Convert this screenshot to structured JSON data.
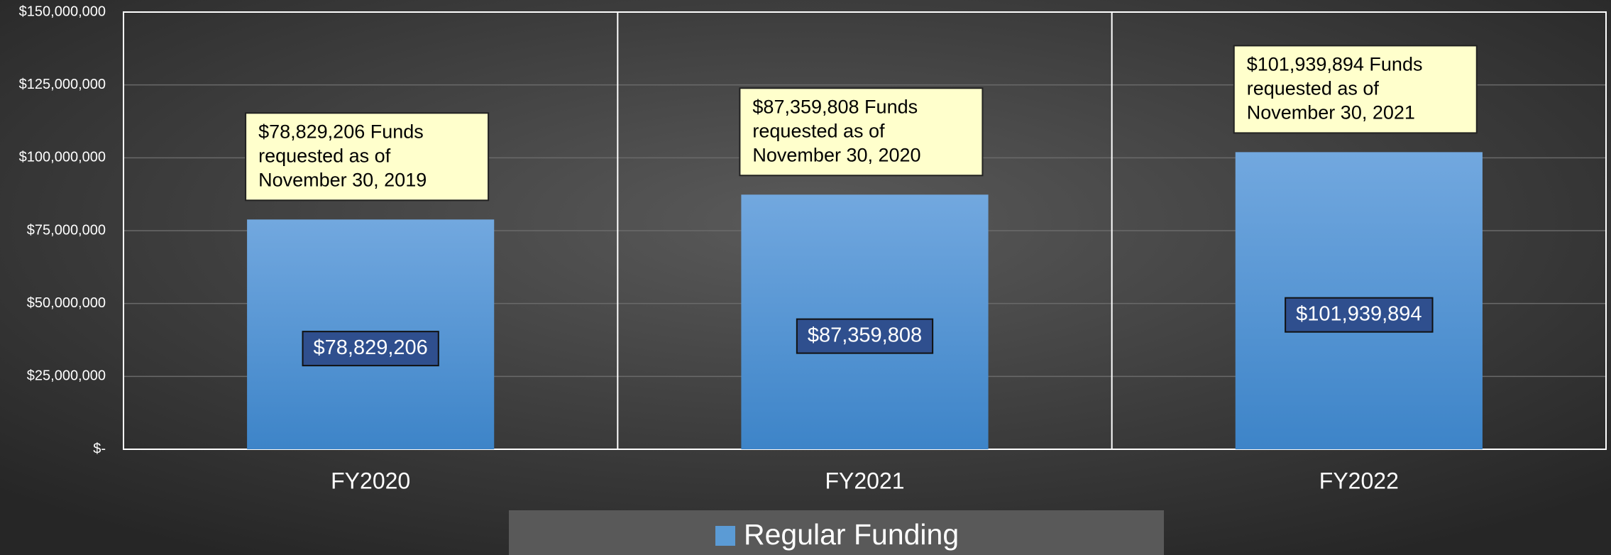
{
  "chart_data": {
    "type": "bar",
    "categories": [
      "FY2020",
      "FY2021",
      "FY2022"
    ],
    "series": [
      {
        "name": "Regular Funding",
        "color": "#5b9bd5",
        "values": [
          78829206,
          87359808,
          101939894
        ],
        "value_labels": [
          "$78,829,206",
          "$87,359,808",
          "$101,939,894"
        ]
      }
    ],
    "annotations": [
      [
        "$78,829,206 Funds",
        "requested as of",
        "November 30, 2019"
      ],
      [
        "$87,359,808 Funds",
        "requested as of",
        "November 30, 2020"
      ],
      [
        "$101,939,894 Funds",
        "requested as of",
        "November 30, 2021"
      ]
    ],
    "ylim": [
      0,
      150000000
    ],
    "yticks": [
      {
        "value": 0,
        "label": "$-"
      },
      {
        "value": 25000000,
        "label": "$25,000,000"
      },
      {
        "value": 50000000,
        "label": "$50,000,000"
      },
      {
        "value": 75000000,
        "label": "$75,000,000"
      },
      {
        "value": 100000000,
        "label": "$100,000,000"
      },
      {
        "value": 125000000,
        "label": "$125,000,000"
      },
      {
        "value": 150000000,
        "label": "$150,000,000"
      }
    ],
    "grid": true,
    "legend": "bottom"
  }
}
